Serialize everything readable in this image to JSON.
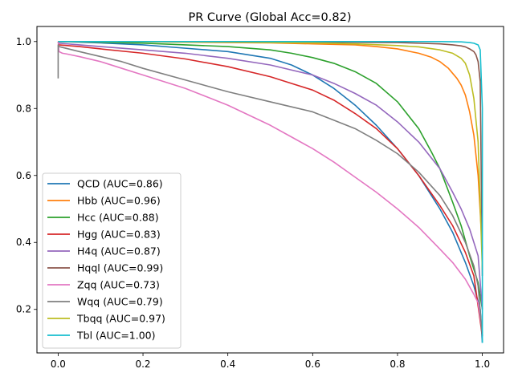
{
  "chart_data": {
    "type": "line",
    "title": "PR Curve (Global Acc=0.82)",
    "xlabel": "",
    "ylabel": "",
    "xlim": [
      -0.05,
      1.05
    ],
    "ylim": [
      0.07,
      1.045
    ],
    "xticks": [
      0.0,
      0.2,
      0.4,
      0.6,
      0.8,
      1.0
    ],
    "yticks": [
      0.2,
      0.4,
      0.6,
      0.8,
      1.0
    ],
    "xtick_labels": [
      "0.0",
      "0.2",
      "0.4",
      "0.6",
      "0.8",
      "1.0"
    ],
    "ytick_labels": [
      "0.2",
      "0.4",
      "0.6",
      "0.8",
      "1.0"
    ],
    "grid": false,
    "legend_position": "lower-left",
    "series": [
      {
        "name": "QCD (AUC=0.86)",
        "color": "#1f77b4",
        "x": [
          0.0,
          0.002,
          0.05,
          0.1,
          0.2,
          0.3,
          0.4,
          0.5,
          0.55,
          0.6,
          0.65,
          0.7,
          0.75,
          0.8,
          0.85,
          0.9,
          0.93,
          0.96,
          0.98,
          0.995,
          1.0
        ],
        "y": [
          1.0,
          1.0,
          0.998,
          0.996,
          0.99,
          0.98,
          0.97,
          0.95,
          0.93,
          0.9,
          0.86,
          0.81,
          0.75,
          0.68,
          0.6,
          0.5,
          0.43,
          0.34,
          0.27,
          0.2,
          0.1
        ]
      },
      {
        "name": "Hbb (AUC=0.96)",
        "color": "#ff7f0e",
        "x": [
          0.0,
          0.002,
          0.1,
          0.2,
          0.3,
          0.4,
          0.5,
          0.6,
          0.7,
          0.75,
          0.8,
          0.85,
          0.88,
          0.9,
          0.92,
          0.94,
          0.95,
          0.96,
          0.97,
          0.98,
          0.99,
          1.0
        ],
        "y": [
          1.0,
          1.0,
          0.999,
          0.999,
          0.998,
          0.997,
          0.996,
          0.993,
          0.99,
          0.985,
          0.978,
          0.965,
          0.953,
          0.94,
          0.92,
          0.89,
          0.87,
          0.84,
          0.79,
          0.72,
          0.6,
          0.38
        ]
      },
      {
        "name": "Hcc (AUC=0.88)",
        "color": "#2ca02c",
        "x": [
          0.0,
          0.002,
          0.1,
          0.2,
          0.3,
          0.4,
          0.5,
          0.55,
          0.6,
          0.65,
          0.7,
          0.75,
          0.8,
          0.85,
          0.88,
          0.9,
          0.93,
          0.95,
          0.97,
          0.99,
          1.0
        ],
        "y": [
          1.0,
          1.0,
          0.998,
          0.995,
          0.99,
          0.985,
          0.975,
          0.965,
          0.952,
          0.935,
          0.91,
          0.875,
          0.82,
          0.74,
          0.67,
          0.62,
          0.52,
          0.45,
          0.36,
          0.28,
          0.2
        ]
      },
      {
        "name": "Hgg (AUC=0.83)",
        "color": "#d62728",
        "x": [
          0.0,
          0.002,
          0.05,
          0.1,
          0.2,
          0.3,
          0.4,
          0.5,
          0.55,
          0.6,
          0.65,
          0.7,
          0.75,
          0.8,
          0.85,
          0.9,
          0.93,
          0.96,
          0.98,
          1.0
        ],
        "y": [
          1.0,
          0.99,
          0.985,
          0.978,
          0.965,
          0.948,
          0.925,
          0.895,
          0.875,
          0.855,
          0.825,
          0.785,
          0.74,
          0.68,
          0.6,
          0.51,
          0.45,
          0.37,
          0.3,
          0.12
        ]
      },
      {
        "name": "H4q (AUC=0.87)",
        "color": "#9467bd",
        "x": [
          0.0,
          0.002,
          0.05,
          0.1,
          0.2,
          0.3,
          0.4,
          0.5,
          0.6,
          0.65,
          0.7,
          0.75,
          0.8,
          0.85,
          0.9,
          0.93,
          0.95,
          0.97,
          0.99,
          1.0
        ],
        "y": [
          1.0,
          0.995,
          0.99,
          0.985,
          0.975,
          0.965,
          0.95,
          0.93,
          0.9,
          0.875,
          0.845,
          0.81,
          0.76,
          0.7,
          0.62,
          0.55,
          0.5,
          0.44,
          0.36,
          0.2
        ]
      },
      {
        "name": "Hqql (AUC=0.99)",
        "color": "#8c564b",
        "x": [
          0.0,
          0.002,
          0.2,
          0.4,
          0.6,
          0.8,
          0.85,
          0.9,
          0.93,
          0.95,
          0.96,
          0.97,
          0.98,
          0.985,
          0.99,
          0.995,
          1.0
        ],
        "y": [
          1.0,
          1.0,
          1.0,
          0.999,
          0.998,
          0.997,
          0.995,
          0.993,
          0.99,
          0.987,
          0.984,
          0.978,
          0.97,
          0.96,
          0.94,
          0.88,
          0.3
        ]
      },
      {
        "name": "Zqq (AUC=0.73)",
        "color": "#e377c2",
        "x": [
          0.0,
          0.002,
          0.01,
          0.02,
          0.05,
          0.1,
          0.15,
          0.2,
          0.25,
          0.3,
          0.35,
          0.4,
          0.45,
          0.5,
          0.55,
          0.6,
          0.65,
          0.7,
          0.75,
          0.8,
          0.85,
          0.9,
          0.93,
          0.96,
          0.98,
          0.99,
          1.0
        ],
        "y": [
          1.0,
          0.97,
          0.965,
          0.963,
          0.955,
          0.94,
          0.92,
          0.9,
          0.88,
          0.86,
          0.835,
          0.81,
          0.78,
          0.75,
          0.715,
          0.68,
          0.64,
          0.595,
          0.55,
          0.5,
          0.445,
          0.38,
          0.34,
          0.29,
          0.245,
          0.22,
          0.13
        ]
      },
      {
        "name": "Wqq (AUC=0.79)",
        "color": "#7f7f7f",
        "x": [
          0.0,
          0.0,
          0.002,
          0.05,
          0.1,
          0.15,
          0.2,
          0.3,
          0.4,
          0.5,
          0.55,
          0.6,
          0.65,
          0.7,
          0.75,
          0.8,
          0.85,
          0.9,
          0.93,
          0.96,
          0.98,
          0.99,
          1.0
        ],
        "y": [
          0.89,
          0.99,
          0.985,
          0.97,
          0.955,
          0.94,
          0.92,
          0.885,
          0.85,
          0.82,
          0.805,
          0.79,
          0.765,
          0.74,
          0.705,
          0.665,
          0.61,
          0.54,
          0.48,
          0.4,
          0.33,
          0.27,
          0.12
        ]
      },
      {
        "name": "Tbqq (AUC=0.97)",
        "color": "#bcbd22",
        "x": [
          0.0,
          0.002,
          0.2,
          0.4,
          0.6,
          0.7,
          0.8,
          0.85,
          0.9,
          0.93,
          0.95,
          0.96,
          0.97,
          0.98,
          0.99,
          1.0
        ],
        "y": [
          1.0,
          1.0,
          0.999,
          0.998,
          0.996,
          0.993,
          0.988,
          0.984,
          0.975,
          0.965,
          0.95,
          0.935,
          0.9,
          0.83,
          0.7,
          0.32
        ]
      },
      {
        "name": "Tbl (AUC=1.00)",
        "color": "#17becf",
        "x": [
          0.0,
          0.002,
          0.2,
          0.4,
          0.6,
          0.8,
          0.9,
          0.95,
          0.97,
          0.98,
          0.99,
          0.995,
          1.0,
          1.0
        ],
        "y": [
          1.0,
          1.0,
          1.0,
          1.0,
          1.0,
          1.0,
          1.0,
          0.999,
          0.997,
          0.995,
          0.99,
          0.975,
          0.8,
          0.1
        ]
      }
    ]
  }
}
